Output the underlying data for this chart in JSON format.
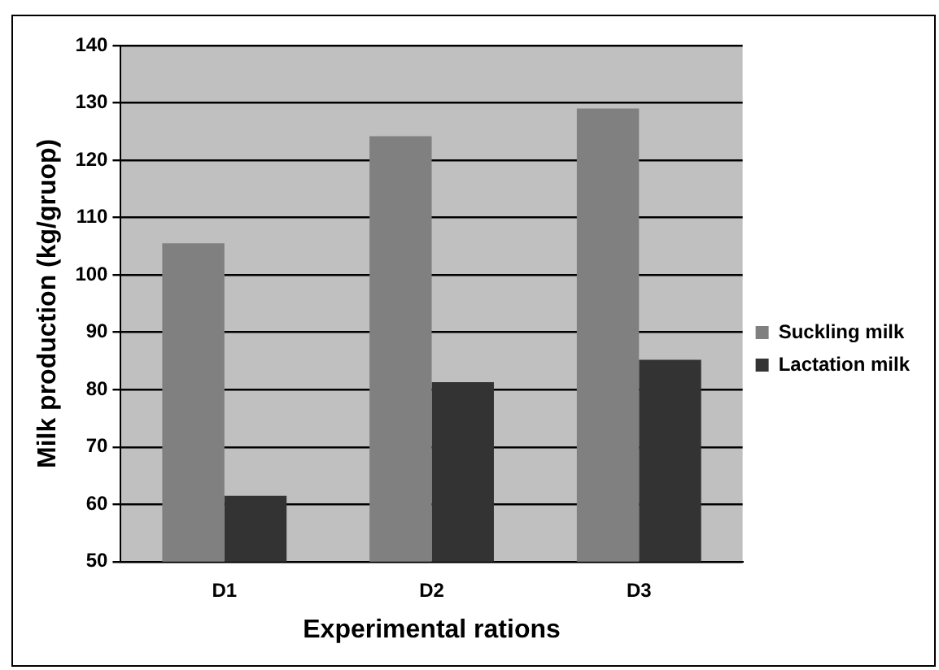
{
  "chart_data": {
    "type": "bar",
    "xlabel": "Experimental rations",
    "ylabel": "Milk production (kg/gruop)",
    "categories": [
      "D1",
      "D2",
      "D3"
    ],
    "series": [
      {
        "name": "Suckling milk",
        "color": "#808080",
        "values": [
          105.5,
          124.2,
          129
        ]
      },
      {
        "name": "Lactation milk",
        "color": "#333333",
        "values": [
          61.5,
          81.3,
          85.2
        ]
      }
    ],
    "ylim": [
      50,
      140
    ],
    "yticks": [
      50,
      60,
      70,
      80,
      90,
      100,
      110,
      120,
      130,
      140
    ],
    "grid": "y",
    "legend": "right"
  }
}
